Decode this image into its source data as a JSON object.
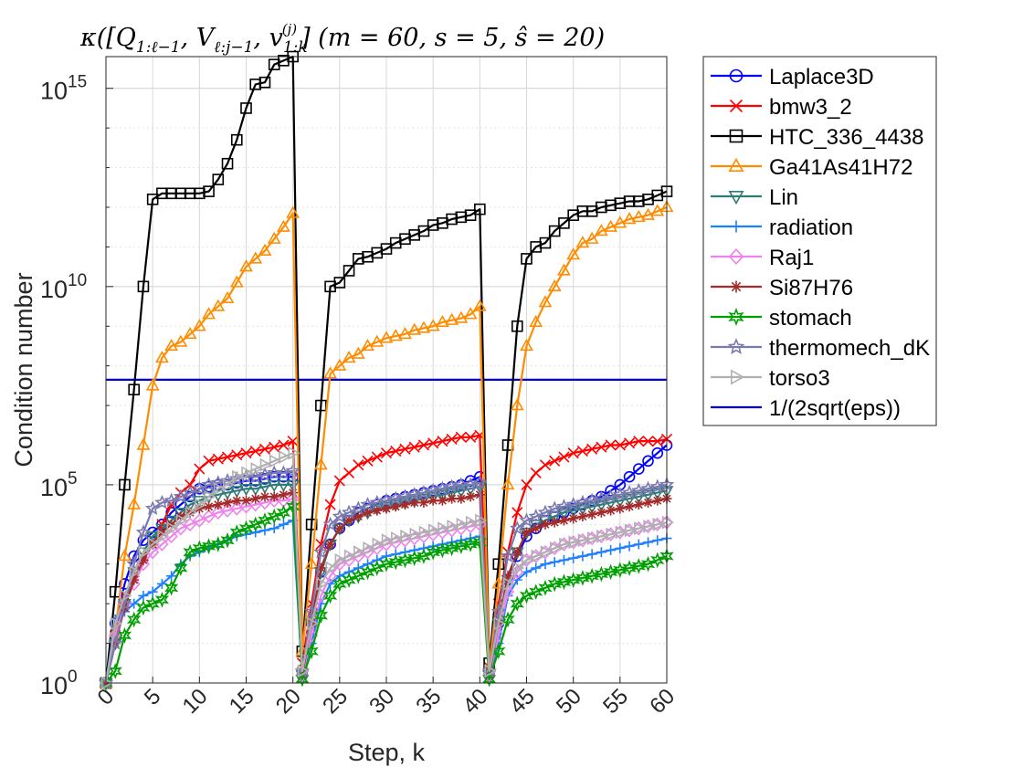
{
  "chart_data": {
    "type": "line",
    "title": "κ([Q_{1:ℓ−1}, V_{ℓ:j−1}, v_{1:k}^{(j)}] (m = 60, s = 5, ŝ = 20)",
    "title_parts": {
      "kappa": "κ([Q",
      "q_sub": "1:ℓ−1",
      "v": ", V",
      "v_sub": "ℓ:j−1",
      "v2": ", v",
      "v2_sub": "1:k",
      "v2_sup": "(j)",
      "params": "]  (m = 60,  s = 5,  ŝ = 20)"
    },
    "xlabel": "Step, k",
    "ylabel": "Condition number",
    "xlim": [
      0,
      60
    ],
    "ylim_log10": [
      0,
      15.8
    ],
    "x_ticks": [
      "0",
      "5",
      "10",
      "15",
      "20",
      "25",
      "30",
      "35",
      "40",
      "45",
      "50",
      "55",
      "60"
    ],
    "y_ticks": [
      {
        "base": "10",
        "exp": "0",
        "value_log10": 0
      },
      {
        "base": "10",
        "exp": "5",
        "value_log10": 5
      },
      {
        "base": "10",
        "exp": "10",
        "value_log10": 10
      },
      {
        "base": "10",
        "exp": "15",
        "value_log10": 15
      }
    ],
    "grid": true,
    "legend_position": "outside right",
    "reference_line": {
      "name": "1/(2sqrt(eps))",
      "value_log10": 7.65,
      "color": "#0000e0"
    },
    "series": [
      {
        "name": "Laplace3D",
        "color": "#0000ff",
        "marker": "circle",
        "skipMarkers": false,
        "values_log10": [
          0,
          1.5,
          2.5,
          3.2,
          3.6,
          3.8,
          4.0,
          4.3,
          4.5,
          4.7,
          4.9,
          4.95,
          5.0,
          5.0,
          5.05,
          5.1,
          5.1,
          5.15,
          5.2,
          5.2,
          5.2,
          0.2,
          1.5,
          2.8,
          3.5,
          3.9,
          4.1,
          4.3,
          4.4,
          4.5,
          4.6,
          4.65,
          4.7,
          4.75,
          4.8,
          4.85,
          4.9,
          4.95,
          5.0,
          5.1,
          5.2,
          0.2,
          1.5,
          2.6,
          3.2,
          3.7,
          3.9,
          4.1,
          4.2,
          4.3,
          4.4,
          4.5,
          4.6,
          4.7,
          4.85,
          5.0,
          5.2,
          5.4,
          5.6,
          5.8,
          6.0
        ]
      },
      {
        "name": "bmw3_2",
        "color": "#ff0000",
        "marker": "x",
        "skipMarkers": false,
        "values_log10": [
          0,
          1.2,
          2.2,
          2.8,
          3.2,
          3.5,
          4.0,
          4.5,
          4.8,
          5.0,
          5.4,
          5.6,
          5.65,
          5.7,
          5.75,
          5.8,
          5.85,
          5.9,
          5.95,
          6.0,
          6.1,
          0.5,
          2.0,
          3.5,
          4.5,
          5.1,
          5.3,
          5.5,
          5.6,
          5.7,
          5.8,
          5.85,
          5.9,
          5.95,
          6.0,
          6.05,
          6.1,
          6.15,
          6.2,
          6.2,
          6.25,
          0.4,
          2.0,
          3.3,
          4.3,
          5.0,
          5.3,
          5.5,
          5.6,
          5.7,
          5.8,
          5.85,
          5.9,
          5.95,
          6.0,
          6.0,
          6.05,
          6.1,
          6.1,
          6.1,
          6.15
        ]
      },
      {
        "name": "HTC_336_4438",
        "color": "#000000",
        "marker": "square",
        "skipMarkers": false,
        "values_log10": [
          0,
          2.3,
          5.0,
          7.4,
          10.0,
          12.2,
          12.35,
          12.35,
          12.35,
          12.35,
          12.35,
          12.4,
          12.7,
          13.1,
          13.7,
          14.5,
          15.1,
          15.15,
          15.6,
          15.7,
          15.8,
          0.8,
          4.0,
          7.0,
          10.0,
          10.1,
          10.4,
          10.7,
          10.75,
          10.85,
          10.95,
          11.1,
          11.2,
          11.3,
          11.4,
          11.55,
          11.6,
          11.7,
          11.75,
          11.8,
          11.95,
          0.5,
          3.0,
          6.0,
          9.0,
          10.7,
          11.0,
          11.1,
          11.4,
          11.6,
          11.8,
          11.9,
          11.9,
          12.0,
          12.05,
          12.1,
          12.15,
          12.15,
          12.2,
          12.3,
          12.4
        ]
      },
      {
        "name": "Ga41As41H72",
        "color": "#ff8c00",
        "marker": "triangle",
        "skipMarkers": false,
        "values_log10": [
          0,
          1.3,
          3.2,
          4.5,
          6.0,
          7.5,
          8.2,
          8.5,
          8.6,
          8.8,
          9.0,
          9.3,
          9.5,
          9.7,
          10.1,
          10.5,
          10.7,
          10.9,
          11.2,
          11.5,
          11.85,
          0.8,
          3.0,
          5.5,
          7.8,
          8.0,
          8.2,
          8.3,
          8.5,
          8.6,
          8.7,
          8.75,
          8.8,
          8.9,
          8.95,
          9.0,
          9.1,
          9.15,
          9.2,
          9.3,
          9.5,
          0.4,
          2.5,
          5.0,
          7.0,
          8.5,
          9.1,
          9.6,
          10.0,
          10.4,
          10.8,
          11.1,
          11.2,
          11.4,
          11.5,
          11.6,
          11.7,
          11.75,
          11.8,
          11.9,
          12.0
        ]
      },
      {
        "name": "Lin",
        "color": "#2e7d74",
        "marker": "triangle-down",
        "skipMarkers": false,
        "values_log10": [
          0,
          1.0,
          2.0,
          2.8,
          3.3,
          3.7,
          3.9,
          4.1,
          4.3,
          4.5,
          4.6,
          4.7,
          4.75,
          4.8,
          4.85,
          4.9,
          4.9,
          4.95,
          5.0,
          5.0,
          5.0,
          0.2,
          1.5,
          2.8,
          3.5,
          3.9,
          4.1,
          4.2,
          4.3,
          4.4,
          4.45,
          4.5,
          4.55,
          4.6,
          4.65,
          4.7,
          4.75,
          4.8,
          4.85,
          4.9,
          4.95,
          0.2,
          1.5,
          2.6,
          3.3,
          3.8,
          4.0,
          4.1,
          4.2,
          4.3,
          4.35,
          4.4,
          4.45,
          4.5,
          4.55,
          4.6,
          4.65,
          4.7,
          4.75,
          4.8,
          4.85
        ]
      },
      {
        "name": "radiation",
        "color": "#1e7fff",
        "marker": "plus",
        "skipMarkers": false,
        "values_log10": [
          0,
          1.6,
          1.8,
          2.0,
          2.2,
          2.3,
          2.5,
          2.7,
          3.0,
          3.2,
          3.3,
          3.4,
          3.5,
          3.6,
          3.7,
          3.75,
          3.8,
          3.85,
          3.9,
          4.0,
          4.1,
          0.2,
          1.0,
          2.0,
          2.5,
          2.7,
          2.8,
          2.9,
          3.0,
          3.1,
          3.2,
          3.25,
          3.3,
          3.35,
          3.4,
          3.45,
          3.5,
          3.55,
          3.6,
          3.65,
          3.7,
          0.2,
          1.0,
          2.2,
          2.6,
          2.8,
          2.9,
          3.0,
          3.05,
          3.1,
          3.15,
          3.2,
          3.25,
          3.3,
          3.35,
          3.4,
          3.45,
          3.5,
          3.55,
          3.6,
          3.65
        ]
      },
      {
        "name": "Raj1",
        "color": "#ee82ee",
        "marker": "diamond",
        "skipMarkers": false,
        "values_log10": [
          0,
          1.2,
          2.0,
          2.5,
          3.0,
          3.3,
          3.5,
          3.7,
          3.9,
          4.0,
          4.1,
          4.2,
          4.3,
          4.35,
          4.4,
          4.45,
          4.5,
          4.55,
          4.6,
          4.6,
          4.65,
          0.2,
          1.2,
          2.2,
          2.7,
          3.0,
          3.1,
          3.2,
          3.3,
          3.4,
          3.5,
          3.55,
          3.6,
          3.65,
          3.7,
          3.75,
          3.8,
          3.85,
          3.9,
          3.95,
          4.0,
          0.2,
          1.2,
          2.3,
          2.8,
          3.1,
          3.2,
          3.3,
          3.4,
          3.5,
          3.55,
          3.6,
          3.65,
          3.7,
          3.75,
          3.8,
          3.85,
          3.9,
          3.95,
          4.0,
          4.05
        ]
      },
      {
        "name": "Si87H76",
        "color": "#a52a2a",
        "marker": "asterisk",
        "skipMarkers": false,
        "values_log10": [
          0,
          1.0,
          1.9,
          2.6,
          3.1,
          3.5,
          3.8,
          4.0,
          4.2,
          4.3,
          4.4,
          4.45,
          4.5,
          4.55,
          4.6,
          4.6,
          4.65,
          4.7,
          4.7,
          4.75,
          4.8,
          0.2,
          1.5,
          2.9,
          3.5,
          3.9,
          4.1,
          4.2,
          4.3,
          4.35,
          4.4,
          4.45,
          4.5,
          4.55,
          4.55,
          4.6,
          4.6,
          4.65,
          4.65,
          4.7,
          4.75,
          0.2,
          1.5,
          2.7,
          3.3,
          3.8,
          3.9,
          4.0,
          4.05,
          4.1,
          4.15,
          4.2,
          4.25,
          4.3,
          4.35,
          4.4,
          4.45,
          4.5,
          4.55,
          4.6,
          4.65
        ]
      },
      {
        "name": "stomach",
        "color": "#00a000",
        "marker": "hexagram",
        "skipMarkers": false,
        "values_log10": [
          0,
          0.3,
          1.2,
          1.6,
          1.9,
          2.0,
          2.1,
          2.4,
          2.9,
          3.3,
          3.4,
          3.45,
          3.5,
          3.6,
          3.8,
          3.9,
          4.0,
          4.1,
          4.2,
          4.3,
          4.45,
          0.1,
          0.8,
          1.7,
          2.2,
          2.5,
          2.6,
          2.7,
          2.8,
          2.9,
          3.0,
          3.05,
          3.1,
          3.15,
          3.2,
          3.3,
          3.35,
          3.4,
          3.45,
          3.5,
          3.55,
          0.1,
          0.8,
          1.6,
          2.0,
          2.2,
          2.3,
          2.4,
          2.5,
          2.55,
          2.6,
          2.65,
          2.7,
          2.75,
          2.8,
          2.85,
          2.9,
          2.95,
          3.0,
          3.1,
          3.2
        ]
      },
      {
        "name": "thermomech_dK",
        "color": "#7a7ab0",
        "marker": "pentagram",
        "skipMarkers": false,
        "values_log10": [
          0,
          1.0,
          2.0,
          3.0,
          3.8,
          4.4,
          4.55,
          4.6,
          4.7,
          4.8,
          4.9,
          5.0,
          5.05,
          5.1,
          5.15,
          5.2,
          5.2,
          5.25,
          5.3,
          5.3,
          5.35,
          0.3,
          1.8,
          3.3,
          4.0,
          4.2,
          4.3,
          4.4,
          4.5,
          4.55,
          4.6,
          4.65,
          4.7,
          4.75,
          4.8,
          4.85,
          4.9,
          4.95,
          5.0,
          5.0,
          5.05,
          0.3,
          1.8,
          3.2,
          3.9,
          4.1,
          4.2,
          4.3,
          4.4,
          4.45,
          4.5,
          4.55,
          4.6,
          4.65,
          4.7,
          4.75,
          4.8,
          4.85,
          4.9,
          4.95,
          5.0
        ]
      },
      {
        "name": "torso3",
        "color": "#b0b0b0",
        "marker": "triangle-right",
        "skipMarkers": false,
        "values_log10": [
          0,
          1.5,
          2.2,
          2.8,
          3.3,
          3.5,
          3.7,
          3.9,
          4.1,
          4.3,
          4.5,
          4.7,
          4.9,
          5.0,
          5.2,
          5.3,
          5.4,
          5.5,
          5.6,
          5.7,
          5.8,
          0.3,
          1.5,
          2.5,
          2.9,
          3.1,
          3.2,
          3.3,
          3.4,
          3.5,
          3.6,
          3.65,
          3.7,
          3.75,
          3.8,
          3.85,
          3.9,
          3.95,
          4.0,
          4.05,
          4.1,
          0.3,
          1.5,
          2.5,
          2.9,
          3.1,
          3.2,
          3.3,
          3.4,
          3.5,
          3.55,
          3.6,
          3.65,
          3.7,
          3.75,
          3.8,
          3.85,
          3.9,
          3.95,
          4.0,
          4.05
        ]
      },
      {
        "name": "1/(2sqrt(eps))",
        "color": "#0000e0",
        "marker": "none",
        "skipMarkers": true,
        "is_reference": true
      }
    ]
  }
}
